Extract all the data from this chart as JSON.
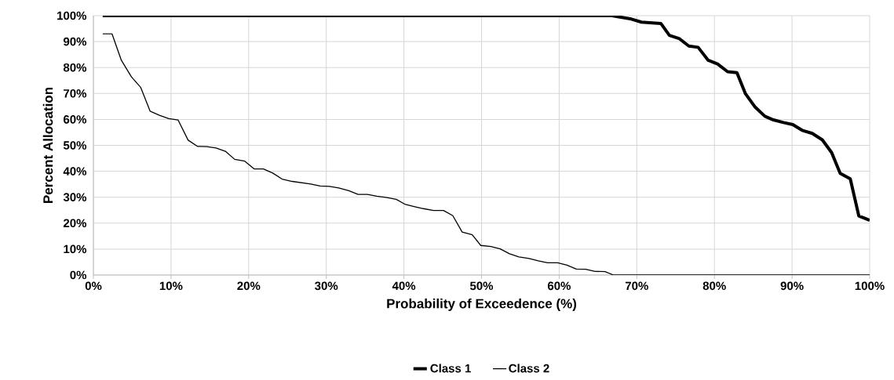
{
  "chart_data": {
    "type": "line",
    "xlabel": "Probability of Exceedence (%)",
    "ylabel": "Percent Allocation",
    "xlim": [
      0,
      100
    ],
    "ylim": [
      0,
      100
    ],
    "xticks": [
      {
        "value": 0,
        "label": "0%"
      },
      {
        "value": 10,
        "label": "10%"
      },
      {
        "value": 20,
        "label": "20%"
      },
      {
        "value": 30,
        "label": "30%"
      },
      {
        "value": 40,
        "label": "40%"
      },
      {
        "value": 50,
        "label": "50%"
      },
      {
        "value": 60,
        "label": "60%"
      },
      {
        "value": 70,
        "label": "70%"
      },
      {
        "value": 80,
        "label": "80%"
      },
      {
        "value": 90,
        "label": "90%"
      },
      {
        "value": 100,
        "label": "100%"
      }
    ],
    "yticks": [
      {
        "value": 0,
        "label": "0%"
      },
      {
        "value": 10,
        "label": "10%"
      },
      {
        "value": 20,
        "label": "20%"
      },
      {
        "value": 30,
        "label": "30%"
      },
      {
        "value": 40,
        "label": "40%"
      },
      {
        "value": 50,
        "label": "50%"
      },
      {
        "value": 60,
        "label": "60%"
      },
      {
        "value": 70,
        "label": "70%"
      },
      {
        "value": 80,
        "label": "80%"
      },
      {
        "value": 90,
        "label": "90%"
      },
      {
        "value": 100,
        "label": "100%"
      }
    ],
    "grid": true,
    "legend": "bottom",
    "marker": "none",
    "line_style": "solid",
    "series": [
      {
        "name": "Class 1",
        "color": "#000000",
        "x": [
          1.2,
          66.8,
          69.3,
          70.6,
          73.1,
          74.2,
          75.5,
          76.7,
          77.9,
          79.2,
          80.4,
          81.7,
          82.9,
          84.0,
          85.2,
          86.5,
          87.6,
          88.9,
          90.1,
          91.3,
          92.6,
          93.9,
          95.1,
          96.2,
          97.5,
          98.6,
          100
        ],
        "values": [
          100,
          100,
          98.7,
          97.5,
          97.0,
          92.4,
          91.1,
          88.3,
          87.8,
          82.8,
          81.4,
          78.4,
          78.0,
          69.9,
          64.9,
          61.2,
          59.8,
          58.8,
          58.0,
          55.8,
          54.6,
          52.1,
          47.2,
          39.2,
          37.1,
          22.8,
          21.1
        ]
      },
      {
        "name": "Class 2",
        "color": "#000000",
        "x": [
          1.2,
          2.4,
          3.6,
          4.9,
          6.1,
          7.3,
          8.5,
          9.7,
          10.9,
          12.2,
          13.4,
          14.6,
          15.8,
          17.0,
          18.2,
          19.5,
          20.7,
          21.9,
          23.1,
          24.3,
          25.6,
          26.8,
          28.0,
          29.2,
          30.4,
          31.6,
          32.9,
          34.1,
          35.3,
          36.5,
          37.8,
          39.0,
          40.2,
          41.3,
          42.5,
          43.8,
          45.1,
          46.3,
          47.5,
          48.8,
          49.9,
          51.2,
          52.4,
          53.6,
          54.8,
          56.1,
          57.3,
          58.5,
          59.8,
          61.0,
          62.2,
          63.4,
          64.6,
          65.9,
          67.0,
          100
        ],
        "values": [
          93.0,
          93.0,
          82.8,
          76.4,
          72.3,
          63.2,
          61.6,
          60.3,
          59.8,
          52.0,
          49.6,
          49.5,
          49.0,
          47.7,
          44.6,
          43.9,
          40.9,
          40.9,
          39.3,
          37.0,
          36.1,
          35.6,
          35.1,
          34.3,
          34.2,
          33.6,
          32.5,
          31.1,
          31.1,
          30.4,
          29.9,
          29.2,
          27.2,
          26.4,
          25.6,
          24.9,
          24.9,
          22.9,
          16.6,
          15.5,
          11.4,
          11.0,
          10.1,
          8.2,
          7.0,
          6.4,
          5.5,
          4.7,
          4.7,
          3.8,
          2.3,
          2.2,
          1.4,
          1.3,
          0,
          0
        ]
      }
    ]
  }
}
